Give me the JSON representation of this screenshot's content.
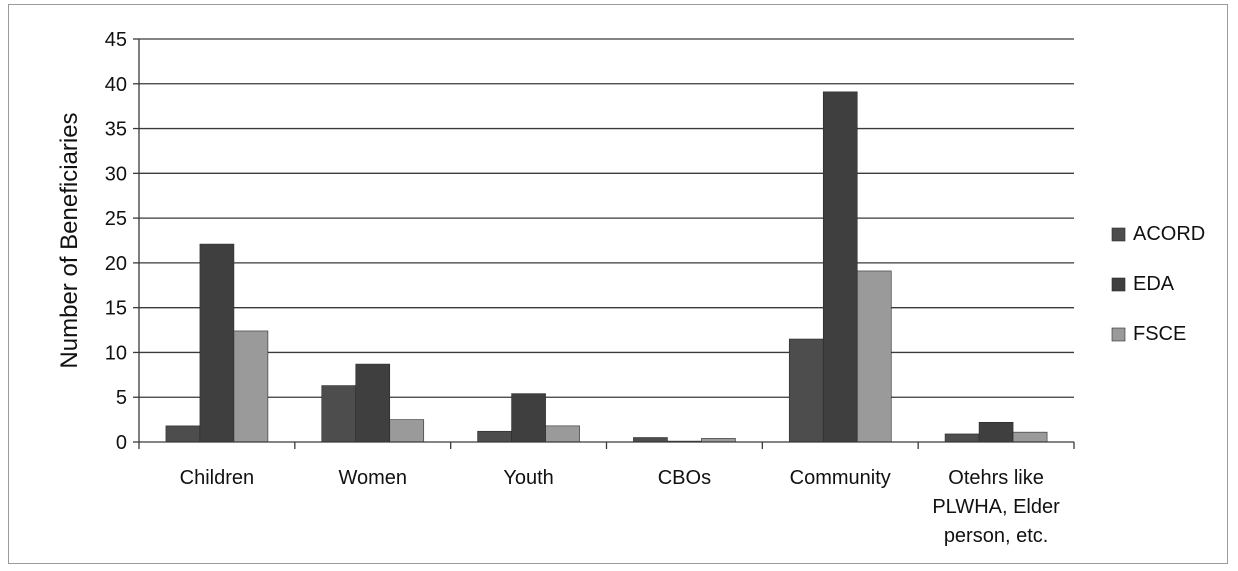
{
  "chart_data": {
    "type": "bar",
    "title": "",
    "xlabel": "",
    "ylabel": "Number of Beneficiaries",
    "ylim": [
      0,
      45
    ],
    "ytick_step": 5,
    "grid": true,
    "legend_position": "right",
    "categories": [
      [
        "Children"
      ],
      [
        "Women"
      ],
      [
        "Youth"
      ],
      [
        "CBOs"
      ],
      [
        "Community"
      ],
      [
        "Otehrs like",
        "PLWHA, Elder",
        "person, etc."
      ]
    ],
    "series": [
      {
        "name": "ACORD",
        "color": "#4d4d4d",
        "values": [
          1.8,
          6.3,
          1.2,
          0.5,
          11.5,
          0.9
        ]
      },
      {
        "name": "EDA",
        "color": "#3f3f3f",
        "values": [
          22.1,
          8.7,
          5.4,
          0.1,
          39.1,
          2.2
        ]
      },
      {
        "name": "FSCE",
        "color": "#9a9a9a",
        "values": [
          12.4,
          2.5,
          1.8,
          0.4,
          19.1,
          1.1
        ]
      }
    ]
  }
}
